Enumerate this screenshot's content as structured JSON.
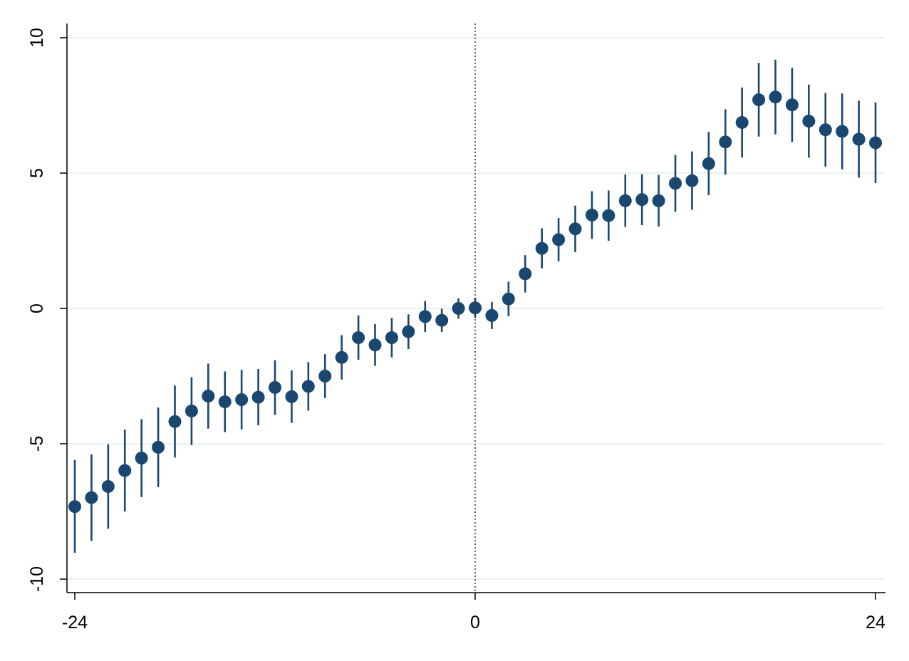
{
  "chart_data": {
    "type": "scatter",
    "subtype": "coefficient-plot-with-confidence-intervals",
    "title": "",
    "xlabel": "",
    "ylabel": "",
    "xlim": [
      -24,
      24
    ],
    "ylim": [
      -10,
      10
    ],
    "x_ticks": [
      -24,
      0,
      24
    ],
    "x_tick_labels": [
      "-24",
      "0",
      "24"
    ],
    "y_ticks": [
      -10,
      -5,
      0,
      5,
      10
    ],
    "y_tick_labels": [
      "-10",
      "-5",
      "0",
      "5",
      "10"
    ],
    "grid": "horizontal",
    "reference_line": {
      "x": 0,
      "style": "dotted"
    },
    "legend": "none",
    "colors": {
      "marker": "#1a476f",
      "grid": "#eaf2f3",
      "axis": "#000000",
      "reference_line": "#333333"
    },
    "series": [
      {
        "x": [
          -24,
          -23,
          -22,
          -21,
          -20,
          -19,
          -18,
          -17,
          -16,
          -15,
          -14,
          -13,
          -12,
          -11,
          -10,
          -9,
          -8,
          -7,
          -6,
          -5,
          -4,
          -3,
          -2,
          -1,
          0,
          1,
          2,
          3,
          4,
          5,
          6,
          7,
          8,
          9,
          10,
          11,
          12,
          13,
          14,
          15,
          16,
          17,
          18,
          19,
          20,
          21,
          22,
          23,
          24
        ],
        "y": [
          -7.32,
          -6.99,
          -6.58,
          -5.99,
          -5.53,
          -5.13,
          -4.18,
          -3.79,
          -3.24,
          -3.45,
          -3.37,
          -3.28,
          -2.92,
          -3.26,
          -2.88,
          -2.5,
          -1.81,
          -1.08,
          -1.35,
          -1.08,
          -0.86,
          -0.3,
          -0.44,
          0.0,
          0.02,
          -0.26,
          0.35,
          1.28,
          2.22,
          2.54,
          2.94,
          3.45,
          3.43,
          3.98,
          4.02,
          3.98,
          4.62,
          4.72,
          5.35,
          6.15,
          6.87,
          7.71,
          7.81,
          7.52,
          6.92,
          6.6,
          6.54,
          6.25,
          6.12
        ],
        "ci_low": [
          -9.03,
          -8.59,
          -8.14,
          -7.5,
          -6.97,
          -6.6,
          -5.51,
          -5.05,
          -4.44,
          -4.57,
          -4.47,
          -4.32,
          -3.93,
          -4.23,
          -3.78,
          -3.31,
          -2.63,
          -1.9,
          -2.12,
          -1.81,
          -1.5,
          -0.87,
          -0.87,
          -0.38,
          -0.35,
          -0.76,
          -0.29,
          0.59,
          1.48,
          1.74,
          2.08,
          2.57,
          2.5,
          3.01,
          3.08,
          3.03,
          3.57,
          3.64,
          4.18,
          4.94,
          5.58,
          6.35,
          6.43,
          6.15,
          5.57,
          5.24,
          5.14,
          4.83,
          4.63
        ],
        "ci_high": [
          -5.6,
          -5.39,
          -5.02,
          -4.48,
          -4.09,
          -3.66,
          -2.85,
          -2.54,
          -2.04,
          -2.33,
          -2.27,
          -2.24,
          -1.91,
          -2.29,
          -1.98,
          -1.69,
          -0.99,
          -0.26,
          -0.58,
          -0.35,
          -0.22,
          0.27,
          -0.01,
          0.38,
          0.39,
          0.24,
          0.99,
          1.97,
          2.96,
          3.34,
          3.8,
          4.33,
          4.36,
          4.95,
          4.96,
          4.93,
          5.67,
          5.8,
          6.52,
          7.36,
          8.16,
          9.07,
          9.19,
          8.89,
          8.27,
          7.96,
          7.94,
          7.67,
          7.61
        ]
      }
    ]
  }
}
